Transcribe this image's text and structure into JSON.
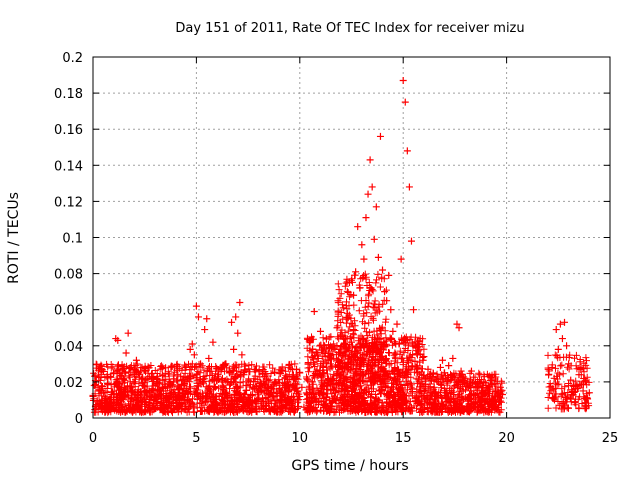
{
  "chart_data": {
    "type": "scatter",
    "title": "Day 151 of 2011, Rate Of TEC Index for receiver mizu",
    "xlabel": "GPS time / hours",
    "ylabel": "ROTI / TECUs",
    "xlim": [
      0,
      25
    ],
    "ylim": [
      0,
      0.2
    ],
    "xticks": [
      0,
      5,
      10,
      15,
      20,
      25
    ],
    "xtick_labels": [
      "0",
      "5",
      "10",
      "15",
      "20",
      "25"
    ],
    "yticks": [
      0,
      0.02,
      0.04,
      0.06,
      0.08,
      0.1,
      0.12,
      0.14,
      0.16,
      0.18,
      0.2
    ],
    "ytick_labels": [
      "0",
      "0.02",
      "0.04",
      "0.06",
      "0.08",
      "0.1",
      "0.12",
      "0.14",
      "0.16",
      "0.18",
      "0.2"
    ],
    "grid": true,
    "marker": "+",
    "series": [
      {
        "name": "ROTI",
        "color": "#ff0000",
        "points": [
          [
            0.0,
            0.012
          ],
          [
            0.1,
            0.018
          ],
          [
            0.2,
            0.009
          ],
          [
            0.3,
            0.015
          ],
          [
            0.4,
            0.007
          ],
          [
            0.5,
            0.014
          ],
          [
            0.6,
            0.011
          ],
          [
            0.7,
            0.019
          ],
          [
            0.8,
            0.008
          ],
          [
            0.9,
            0.013
          ],
          [
            1.0,
            0.01
          ],
          [
            1.1,
            0.044
          ],
          [
            1.2,
            0.043
          ],
          [
            1.3,
            0.016
          ],
          [
            1.4,
            0.022
          ],
          [
            1.5,
            0.012
          ],
          [
            1.6,
            0.036
          ],
          [
            1.7,
            0.047
          ],
          [
            1.8,
            0.028
          ],
          [
            1.9,
            0.015
          ],
          [
            2.0,
            0.02
          ],
          [
            2.1,
            0.032
          ],
          [
            2.2,
            0.025
          ],
          [
            2.3,
            0.011
          ],
          [
            2.4,
            0.018
          ],
          [
            2.5,
            0.009
          ],
          [
            2.6,
            0.014
          ],
          [
            2.7,
            0.007
          ],
          [
            2.8,
            0.012
          ],
          [
            2.9,
            0.016
          ],
          [
            3.0,
            0.01
          ],
          [
            3.1,
            0.013
          ],
          [
            3.2,
            0.019
          ],
          [
            3.3,
            0.008
          ],
          [
            3.4,
            0.015
          ],
          [
            3.5,
            0.011
          ],
          [
            3.6,
            0.017
          ],
          [
            3.7,
            0.009
          ],
          [
            3.8,
            0.014
          ],
          [
            3.9,
            0.02
          ],
          [
            4.0,
            0.012
          ],
          [
            4.1,
            0.024
          ],
          [
            4.2,
            0.016
          ],
          [
            4.3,
            0.01
          ],
          [
            4.4,
            0.018
          ],
          [
            4.5,
            0.028
          ],
          [
            4.6,
            0.022
          ],
          [
            4.7,
            0.038
          ],
          [
            4.8,
            0.041
          ],
          [
            4.9,
            0.035
          ],
          [
            5.0,
            0.062
          ],
          [
            5.1,
            0.056
          ],
          [
            5.2,
            0.03
          ],
          [
            5.3,
            0.02
          ],
          [
            5.4,
            0.049
          ],
          [
            5.5,
            0.055
          ],
          [
            5.6,
            0.033
          ],
          [
            5.7,
            0.015
          ],
          [
            5.8,
            0.042
          ],
          [
            5.9,
            0.009
          ],
          [
            6.0,
            0.021
          ],
          [
            6.1,
            0.012
          ],
          [
            6.2,
            0.027
          ],
          [
            6.3,
            0.017
          ],
          [
            6.4,
            0.03
          ],
          [
            6.5,
            0.011
          ],
          [
            6.6,
            0.025
          ],
          [
            6.7,
            0.053
          ],
          [
            6.8,
            0.038
          ],
          [
            6.9,
            0.056
          ],
          [
            7.0,
            0.047
          ],
          [
            7.1,
            0.064
          ],
          [
            7.2,
            0.035
          ],
          [
            7.3,
            0.024
          ],
          [
            7.4,
            0.018
          ],
          [
            7.5,
            0.011
          ],
          [
            7.6,
            0.02
          ],
          [
            7.7,
            0.013
          ],
          [
            7.8,
            0.016
          ],
          [
            7.9,
            0.009
          ],
          [
            8.0,
            0.014
          ],
          [
            8.1,
            0.019
          ],
          [
            8.2,
            0.011
          ],
          [
            8.3,
            0.023
          ],
          [
            8.4,
            0.015
          ],
          [
            8.5,
            0.008
          ],
          [
            8.6,
            0.017
          ],
          [
            8.7,
            0.012
          ],
          [
            8.8,
            0.02
          ],
          [
            8.9,
            0.01
          ],
          [
            9.0,
            0.015
          ],
          [
            9.1,
            0.009
          ],
          [
            9.2,
            0.013
          ],
          [
            9.3,
            0.018
          ],
          [
            9.4,
            0.011
          ],
          [
            9.5,
            0.016
          ],
          [
            9.6,
            0.008
          ],
          [
            9.7,
            0.012
          ],
          [
            9.8,
            0.019
          ],
          [
            9.9,
            0.01
          ],
          [
            10.0,
            0.025
          ],
          [
            10.1,
            0.017
          ],
          [
            10.2,
            0.006
          ],
          [
            10.4,
            0.03
          ],
          [
            10.5,
            0.043
          ],
          [
            10.6,
            0.02
          ],
          [
            10.7,
            0.059
          ],
          [
            10.8,
            0.036
          ],
          [
            10.9,
            0.014
          ],
          [
            11.0,
            0.048
          ],
          [
            11.1,
            0.025
          ],
          [
            11.2,
            0.04
          ],
          [
            11.3,
            0.018
          ],
          [
            11.4,
            0.032
          ],
          [
            11.5,
            0.045
          ],
          [
            11.6,
            0.022
          ],
          [
            11.7,
            0.038
          ],
          [
            11.8,
            0.05
          ],
          [
            11.9,
            0.028
          ],
          [
            12.0,
            0.046
          ],
          [
            12.1,
            0.061
          ],
          [
            12.2,
            0.035
          ],
          [
            12.3,
            0.058
          ],
          [
            12.4,
            0.075
          ],
          [
            12.5,
            0.042
          ],
          [
            12.6,
            0.068
          ],
          [
            12.7,
            0.081
          ],
          [
            12.8,
            0.106
          ],
          [
            12.9,
            0.072
          ],
          [
            13.0,
            0.096
          ],
          [
            13.1,
            0.088
          ],
          [
            13.2,
            0.111
          ],
          [
            13.3,
            0.124
          ],
          [
            13.4,
            0.143
          ],
          [
            13.5,
            0.128
          ],
          [
            13.6,
            0.099
          ],
          [
            13.7,
            0.117
          ],
          [
            13.8,
            0.089
          ],
          [
            13.9,
            0.156
          ],
          [
            14.0,
            0.082
          ],
          [
            14.1,
            0.07
          ],
          [
            14.2,
            0.065
          ],
          [
            14.3,
            0.079
          ],
          [
            14.4,
            0.06
          ],
          [
            14.5,
            0.048
          ],
          [
            14.6,
            0.036
          ],
          [
            14.7,
            0.052
          ],
          [
            14.8,
            0.041
          ],
          [
            14.9,
            0.088
          ],
          [
            15.0,
            0.187
          ],
          [
            15.1,
            0.175
          ],
          [
            15.2,
            0.148
          ],
          [
            15.3,
            0.128
          ],
          [
            15.4,
            0.098
          ],
          [
            15.5,
            0.06
          ],
          [
            15.6,
            0.04
          ],
          [
            15.7,
            0.025
          ],
          [
            15.8,
            0.031
          ],
          [
            15.9,
            0.019
          ],
          [
            16.0,
            0.034
          ],
          [
            16.1,
            0.022
          ],
          [
            16.2,
            0.027
          ],
          [
            16.3,
            0.015
          ],
          [
            16.4,
            0.023
          ],
          [
            16.5,
            0.017
          ],
          [
            16.6,
            0.012
          ],
          [
            16.7,
            0.02
          ],
          [
            16.8,
            0.028
          ],
          [
            16.9,
            0.032
          ],
          [
            17.0,
            0.025
          ],
          [
            17.1,
            0.014
          ],
          [
            17.2,
            0.029
          ],
          [
            17.3,
            0.021
          ],
          [
            17.4,
            0.033
          ],
          [
            17.5,
            0.018
          ],
          [
            17.6,
            0.052
          ],
          [
            17.7,
            0.05
          ],
          [
            17.8,
            0.026
          ],
          [
            17.9,
            0.015
          ],
          [
            18.0,
            0.022
          ],
          [
            18.1,
            0.011
          ],
          [
            18.2,
            0.018
          ],
          [
            18.3,
            0.026
          ],
          [
            18.4,
            0.013
          ],
          [
            18.5,
            0.009
          ],
          [
            18.6,
            0.017
          ],
          [
            18.7,
            0.024
          ],
          [
            18.8,
            0.012
          ],
          [
            18.9,
            0.02
          ],
          [
            19.0,
            0.014
          ],
          [
            19.1,
            0.008
          ],
          [
            19.2,
            0.016
          ],
          [
            19.3,
            0.011
          ],
          [
            19.4,
            0.019
          ],
          [
            19.5,
            0.009
          ],
          [
            19.6,
            0.014
          ],
          [
            19.7,
            0.017
          ],
          [
            19.8,
            0.013
          ],
          [
            22.2,
            0.028
          ],
          [
            22.3,
            0.022
          ],
          [
            22.4,
            0.049
          ],
          [
            22.5,
            0.038
          ],
          [
            22.6,
            0.052
          ],
          [
            22.7,
            0.044
          ],
          [
            22.8,
            0.053
          ],
          [
            22.9,
            0.04
          ],
          [
            23.0,
            0.03
          ],
          [
            23.1,
            0.021
          ],
          [
            23.2,
            0.013
          ],
          [
            23.3,
            0.009
          ],
          [
            23.4,
            0.018
          ],
          [
            23.5,
            0.024
          ],
          [
            23.6,
            0.028
          ],
          [
            23.7,
            0.015
          ],
          [
            23.8,
            0.02
          ],
          [
            23.9,
            0.011
          ],
          [
            24.0,
            0.014
          ]
        ],
        "noise_bands": [
          {
            "x_start": 0.0,
            "x_end": 10.0,
            "y_min": 0.003,
            "y_max": 0.03,
            "count": 1400
          },
          {
            "x_start": 10.3,
            "x_end": 16.0,
            "y_min": 0.003,
            "y_max": 0.045,
            "count": 1100
          },
          {
            "x_start": 11.8,
            "x_end": 14.2,
            "y_min": 0.02,
            "y_max": 0.08,
            "count": 300
          },
          {
            "x_start": 16.0,
            "x_end": 19.8,
            "y_min": 0.003,
            "y_max": 0.025,
            "count": 520
          },
          {
            "x_start": 22.0,
            "x_end": 24.0,
            "y_min": 0.005,
            "y_max": 0.035,
            "count": 150
          }
        ]
      }
    ]
  }
}
